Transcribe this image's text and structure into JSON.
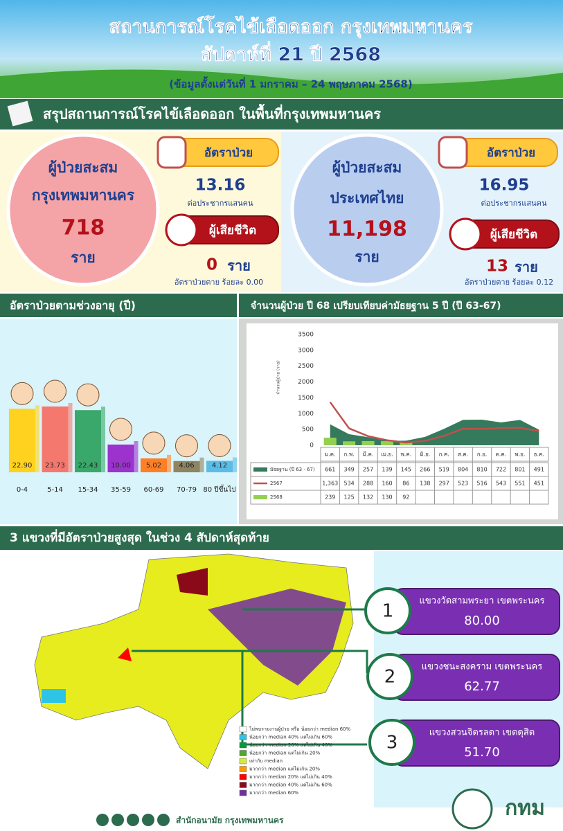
{
  "header": {
    "title": "สถานการณ์โรคไข้เลือดออก กรุงเทพมหานคร",
    "subtitle": "สัปดาห์ที่ 21 ปี 2568",
    "date_range": "(ข้อมูลตั้งแต่วันที่ 1 มกราคม – 24 พฤษภาคม 2568)"
  },
  "summary": {
    "title": "สรุปสถานการณ์โรคไข้เลือดออก ในพื้นที่กรุงเทพมหานคร",
    "bangkok": {
      "label1": "ผู้ป่วยสะสม",
      "label2": "กรุงเทพมหานคร",
      "cases": "718",
      "unit": "ราย",
      "rate_label": "อัตราป่วย",
      "rate": "13.16",
      "rate_unit": "ต่อประชากรแสนคน",
      "death_label": "ผู้เสียชีวิต",
      "deaths": "0",
      "death_unit": "ราย",
      "cfr": "อัตราป่วยตาย ร้อยละ 0.00"
    },
    "thailand": {
      "label1": "ผู้ป่วยสะสม",
      "label2": "ประเทศไทย",
      "cases": "11,198",
      "unit": "ราย",
      "rate_label": "อัตราป่วย",
      "rate": "16.95",
      "rate_unit": "ต่อประชากรแสนคน",
      "death_label": "ผู้เสียชีวิต",
      "deaths": "13",
      "death_unit": "ราย",
      "cfr": "อัตราป่วยตาย ร้อยละ 0.12"
    }
  },
  "chart_data": [
    {
      "type": "bar",
      "title": "อัตราป่วยตามช่วงอายุ (ปี)",
      "categories": [
        "0-4",
        "5-14",
        "15-34",
        "35-59",
        "60-69",
        "70-79",
        "80 ปีขึ้นไป"
      ],
      "values": [
        22.9,
        23.73,
        22.43,
        10.0,
        5.02,
        4.06,
        4.12
      ],
      "value_labels": [
        "22.90",
        "23.73",
        "22.43",
        "10.00",
        "5.02",
        "4.06",
        "4.12"
      ],
      "colors": [
        "#ffd21f",
        "#f5786e",
        "#3aa86b",
        "#9b33cc",
        "#ff7f27",
        "#8e8462",
        "#5bbde6"
      ]
    },
    {
      "type": "combo",
      "title": "จำนวนผู้ป่วย ปี 68 เปรียบเทียบค่ามัธยฐาน 5 ปี (ปี 63-67)",
      "y_label": "จำนวนผู้ป่วย (ราย)",
      "categories": [
        "ม.ค.",
        "ก.พ.",
        "มี.ค.",
        "เม.ย.",
        "พ.ค.",
        "มิ.ย.",
        "ก.ค.",
        "ส.ค.",
        "ก.ย.",
        "ต.ค.",
        "พ.ย.",
        "ธ.ค."
      ],
      "ylim": [
        0,
        3500
      ],
      "yticks": [
        0,
        500,
        1000,
        1500,
        2000,
        2500,
        3000,
        3500
      ],
      "series": [
        {
          "name": "มัธยฐาน (ปี 63 - 67)",
          "mark": "area",
          "color": "#357a5c",
          "values": [
            661,
            349,
            257,
            139,
            145,
            266,
            519,
            804,
            810,
            722,
            801,
            491
          ]
        },
        {
          "name": "2567",
          "mark": "line",
          "color": "#c0504d",
          "values": [
            1363,
            534,
            288,
            160,
            86,
            138,
            297,
            523,
            516,
            543,
            551,
            451
          ],
          "value_labels": [
            "1,363",
            "534",
            "288",
            "160",
            "86",
            "138",
            "297",
            "523",
            "516",
            "543",
            "551",
            "451"
          ]
        },
        {
          "name": "2568",
          "mark": "bar",
          "color": "#92d050",
          "values": [
            239,
            125,
            132,
            130,
            92,
            null,
            null,
            null,
            null,
            null,
            null,
            null
          ]
        }
      ]
    }
  ],
  "map_section": {
    "title": "3 แขวงที่มีอัตราป่วยสูงสุด ในช่วง 4 สัปดาห์สุดท้าย",
    "top": [
      {
        "rank": "1",
        "name": "แขวงวัดสามพระยา เขตพระนคร",
        "value": "80.00"
      },
      {
        "rank": "2",
        "name": "แขวงชนะสงคราม เขตพระนคร",
        "value": "62.77"
      },
      {
        "rank": "3",
        "name": "แขวงสวนจิตรลดา เขตดุสิต",
        "value": "51.70"
      }
    ],
    "legend": [
      {
        "label": "ไม่พบรายงานผู้ป่วย หรือ น้อยกว่า median 60%",
        "color": "#ffffff"
      },
      {
        "label": "น้อยกว่า median 40% แต่ไม่เกิน 60%",
        "color": "#2ec4e6"
      },
      {
        "label": "น้อยกว่า median 20% แต่ไม่เกิน 40%",
        "color": "#009b3a"
      },
      {
        "label": "น้อยกว่า median แต่ไม่เกิน 20%",
        "color": "#4ea72e"
      },
      {
        "label": "เท่ากับ median",
        "color": "#d4ec3a"
      },
      {
        "label": "มากกว่า median แต่ไม่เกิน 20%",
        "color": "#ff9900"
      },
      {
        "label": "มากกว่า median 20% แต่ไม่เกิน 40%",
        "color": "#ff0000"
      },
      {
        "label": "มากกว่า median 40% แต่ไม่เกิน 60%",
        "color": "#8b0a1a"
      },
      {
        "label": "มากกว่า median 60%",
        "color": "#7030a0"
      }
    ]
  },
  "footer": {
    "org": "สำนักอนามัย กรุงเทพมหานคร",
    "logo": "กทม"
  }
}
